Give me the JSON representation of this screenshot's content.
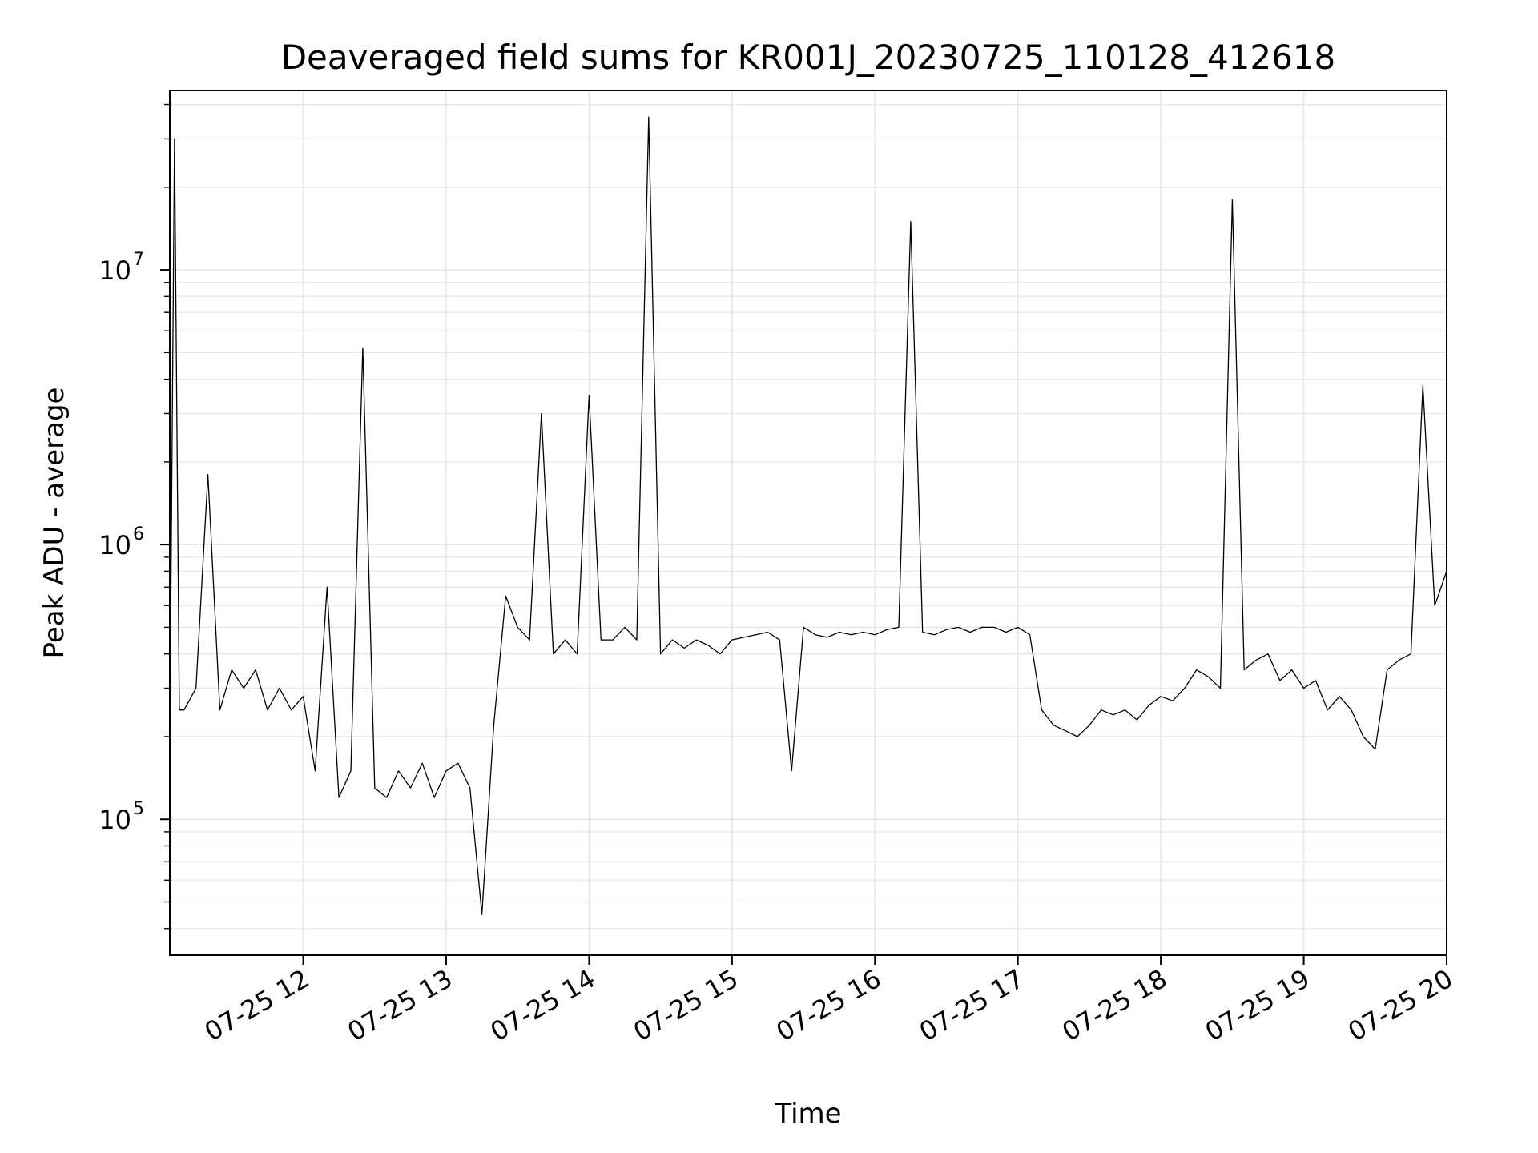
{
  "chart_data": {
    "type": "line",
    "title": "Deaveraged field sums for KR001J_20230725_110128_412618",
    "xlabel": "Time",
    "ylabel": "Peak ADU - average",
    "y_scale": "log",
    "ylim": [
      32000,
      45000000
    ],
    "xlim": [
      "2023-07-25 11:04",
      "2023-07-25 20:00"
    ],
    "grid": true,
    "line_color": "#000000",
    "grid_color": "#e6e6e6",
    "x_ticks": [
      {
        "value": "2023-07-25 12:00",
        "label": "07-25 12"
      },
      {
        "value": "2023-07-25 13:00",
        "label": "07-25 13"
      },
      {
        "value": "2023-07-25 14:00",
        "label": "07-25 14"
      },
      {
        "value": "2023-07-25 15:00",
        "label": "07-25 15"
      },
      {
        "value": "2023-07-25 16:00",
        "label": "07-25 16"
      },
      {
        "value": "2023-07-25 17:00",
        "label": "07-25 17"
      },
      {
        "value": "2023-07-25 18:00",
        "label": "07-25 18"
      },
      {
        "value": "2023-07-25 19:00",
        "label": "07-25 19"
      },
      {
        "value": "2023-07-25 20:00",
        "label": "07-25 20"
      }
    ],
    "y_ticks": [
      {
        "value": 100000,
        "base": "10",
        "exp": "5"
      },
      {
        "value": 1000000,
        "base": "10",
        "exp": "6"
      },
      {
        "value": 10000000,
        "base": "10",
        "exp": "7"
      }
    ],
    "series": [
      {
        "x": [
          "2023-07-25 11:04",
          "2023-07-25 11:06",
          "2023-07-25 11:08",
          "2023-07-25 11:10",
          "2023-07-25 11:15",
          "2023-07-25 11:20",
          "2023-07-25 11:25",
          "2023-07-25 11:30",
          "2023-07-25 11:35",
          "2023-07-25 11:40",
          "2023-07-25 11:45",
          "2023-07-25 11:50",
          "2023-07-25 11:55",
          "2023-07-25 12:00",
          "2023-07-25 12:05",
          "2023-07-25 12:10",
          "2023-07-25 12:15",
          "2023-07-25 12:20",
          "2023-07-25 12:25",
          "2023-07-25 12:30",
          "2023-07-25 12:35",
          "2023-07-25 12:40",
          "2023-07-25 12:45",
          "2023-07-25 12:50",
          "2023-07-25 12:55",
          "2023-07-25 13:00",
          "2023-07-25 13:05",
          "2023-07-25 13:10",
          "2023-07-25 13:15",
          "2023-07-25 13:20",
          "2023-07-25 13:25",
          "2023-07-25 13:30",
          "2023-07-25 13:35",
          "2023-07-25 13:40",
          "2023-07-25 13:45",
          "2023-07-25 13:50",
          "2023-07-25 13:55",
          "2023-07-25 14:00",
          "2023-07-25 14:05",
          "2023-07-25 14:10",
          "2023-07-25 14:15",
          "2023-07-25 14:20",
          "2023-07-25 14:25",
          "2023-07-25 14:30",
          "2023-07-25 14:35",
          "2023-07-25 14:40",
          "2023-07-25 14:45",
          "2023-07-25 14:50",
          "2023-07-25 14:55",
          "2023-07-25 15:00",
          "2023-07-25 15:05",
          "2023-07-25 15:10",
          "2023-07-25 15:15",
          "2023-07-25 15:20",
          "2023-07-25 15:25",
          "2023-07-25 15:30",
          "2023-07-25 15:35",
          "2023-07-25 15:40",
          "2023-07-25 15:45",
          "2023-07-25 15:50",
          "2023-07-25 15:55",
          "2023-07-25 16:00",
          "2023-07-25 16:05",
          "2023-07-25 16:10",
          "2023-07-25 16:15",
          "2023-07-25 16:20",
          "2023-07-25 16:25",
          "2023-07-25 16:30",
          "2023-07-25 16:35",
          "2023-07-25 16:40",
          "2023-07-25 16:45",
          "2023-07-25 16:50",
          "2023-07-25 16:55",
          "2023-07-25 17:00",
          "2023-07-25 17:05",
          "2023-07-25 17:10",
          "2023-07-25 17:15",
          "2023-07-25 17:20",
          "2023-07-25 17:25",
          "2023-07-25 17:30",
          "2023-07-25 17:35",
          "2023-07-25 17:40",
          "2023-07-25 17:45",
          "2023-07-25 17:50",
          "2023-07-25 17:55",
          "2023-07-25 18:00",
          "2023-07-25 18:05",
          "2023-07-25 18:10",
          "2023-07-25 18:15",
          "2023-07-25 18:20",
          "2023-07-25 18:25",
          "2023-07-25 18:30",
          "2023-07-25 18:35",
          "2023-07-25 18:40",
          "2023-07-25 18:45",
          "2023-07-25 18:50",
          "2023-07-25 18:55",
          "2023-07-25 19:00",
          "2023-07-25 19:05",
          "2023-07-25 19:10",
          "2023-07-25 19:15",
          "2023-07-25 19:20",
          "2023-07-25 19:25",
          "2023-07-25 19:30",
          "2023-07-25 19:35",
          "2023-07-25 19:40",
          "2023-07-25 19:45",
          "2023-07-25 19:50",
          "2023-07-25 19:55",
          "2023-07-25 20:00"
        ],
        "y": [
          200000,
          30000000,
          250000,
          250000,
          300000,
          1800000,
          250000,
          350000,
          300000,
          350000,
          250000,
          300000,
          250000,
          280000,
          150000,
          700000,
          120000,
          150000,
          5200000,
          130000,
          120000,
          150000,
          130000,
          160000,
          120000,
          150000,
          160000,
          130000,
          45000,
          220000,
          650000,
          500000,
          450000,
          3000000,
          400000,
          450000,
          400000,
          3500000,
          450000,
          450000,
          500000,
          450000,
          36000000,
          400000,
          450000,
          420000,
          450000,
          430000,
          400000,
          450000,
          460000,
          470000,
          480000,
          450000,
          150000,
          500000,
          470000,
          460000,
          480000,
          470000,
          480000,
          470000,
          490000,
          500000,
          15000000,
          480000,
          470000,
          490000,
          500000,
          480000,
          500000,
          500000,
          480000,
          500000,
          470000,
          250000,
          220000,
          210000,
          200000,
          220000,
          250000,
          240000,
          250000,
          230000,
          260000,
          280000,
          270000,
          300000,
          350000,
          330000,
          300000,
          18000000,
          350000,
          380000,
          400000,
          320000,
          350000,
          300000,
          320000,
          250000,
          280000,
          250000,
          200000,
          180000,
          350000,
          380000,
          400000,
          3800000,
          600000,
          800000
        ]
      }
    ]
  }
}
